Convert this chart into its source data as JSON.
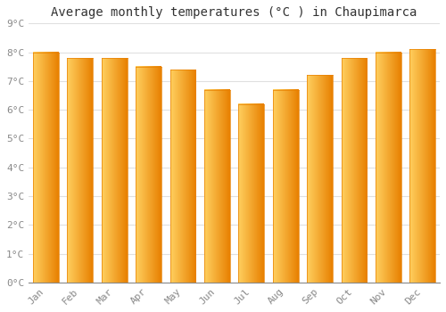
{
  "title": "Average monthly temperatures (°C ) in Chaupimarca",
  "months": [
    "Jan",
    "Feb",
    "Mar",
    "Apr",
    "May",
    "Jun",
    "Jul",
    "Aug",
    "Sep",
    "Oct",
    "Nov",
    "Dec"
  ],
  "values": [
    8.0,
    7.8,
    7.8,
    7.5,
    7.4,
    6.7,
    6.2,
    6.7,
    7.2,
    7.8,
    8.0,
    8.1
  ],
  "bar_color_light": "#FFD060",
  "bar_color_dark": "#E88000",
  "background_color": "#FFFFFF",
  "grid_color": "#E0E0E0",
  "ylim": [
    0,
    9
  ],
  "yticks": [
    0,
    1,
    2,
    3,
    4,
    5,
    6,
    7,
    8,
    9
  ],
  "ytick_labels": [
    "0°C",
    "1°C",
    "2°C",
    "3°C",
    "4°C",
    "5°C",
    "6°C",
    "7°C",
    "8°C",
    "9°C"
  ],
  "title_fontsize": 10,
  "tick_fontsize": 8,
  "font_color": "#888888",
  "bar_width": 0.75
}
